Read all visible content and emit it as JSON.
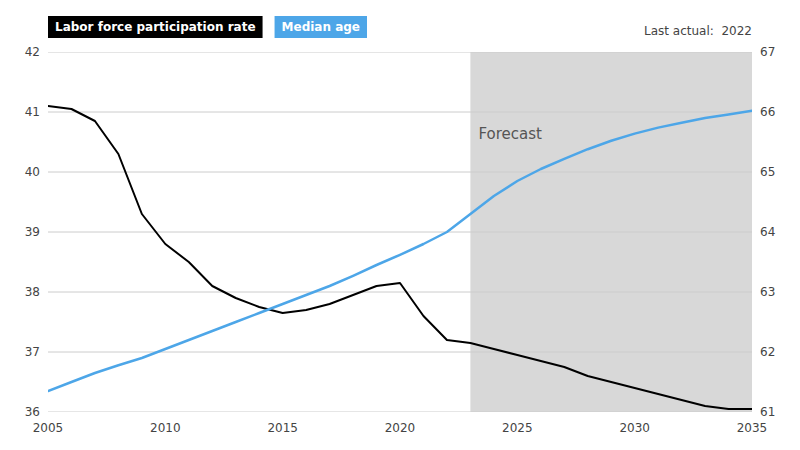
{
  "chart_data": {
    "type": "line",
    "x": [
      2005,
      2006,
      2007,
      2008,
      2009,
      2010,
      2011,
      2012,
      2013,
      2014,
      2015,
      2016,
      2017,
      2018,
      2019,
      2020,
      2021,
      2022,
      2023,
      2024,
      2025,
      2026,
      2027,
      2028,
      2029,
      2030,
      2031,
      2032,
      2033,
      2034,
      2035
    ],
    "series": [
      {
        "name": "Labor force participation rate",
        "color": "#000000",
        "values": [
          41.1,
          41.05,
          40.85,
          40.3,
          39.3,
          38.8,
          38.5,
          38.1,
          37.9,
          37.75,
          37.65,
          37.7,
          37.8,
          37.95,
          38.1,
          38.15,
          37.6,
          37.2,
          37.15,
          37.05,
          36.95,
          36.85,
          36.75,
          36.6,
          36.5,
          36.4,
          36.3,
          36.2,
          36.1,
          36.05,
          36.05
        ]
      },
      {
        "name": "Median age",
        "color": "#4da6e8",
        "axis": "y2",
        "values": [
          61.35,
          61.5,
          61.65,
          61.78,
          61.9,
          62.05,
          62.2,
          62.35,
          62.5,
          62.65,
          62.8,
          62.95,
          63.1,
          63.27,
          63.45,
          63.62,
          63.8,
          64.0,
          64.3,
          64.6,
          64.85,
          65.05,
          65.22,
          65.38,
          65.52,
          65.64,
          65.74,
          65.82,
          65.9,
          65.96,
          66.02
        ]
      }
    ],
    "xlim": [
      2005,
      2035
    ],
    "xticks": [
      2005,
      2010,
      2015,
      2020,
      2025,
      2030,
      2035
    ],
    "ylim": [
      36,
      42
    ],
    "yticks": [
      36,
      37,
      38,
      39,
      40,
      41,
      42
    ],
    "y2lim": [
      61,
      67
    ],
    "y2ticks": [
      61,
      62,
      63,
      64,
      65,
      66,
      67
    ],
    "grid": true,
    "legend": "top left",
    "shaded_regions": [
      {
        "from": 2023,
        "label": "Forecast",
        "color": "#d8d8d8"
      }
    ],
    "annotations": [
      {
        "text": "Last actual:  2022"
      }
    ]
  }
}
